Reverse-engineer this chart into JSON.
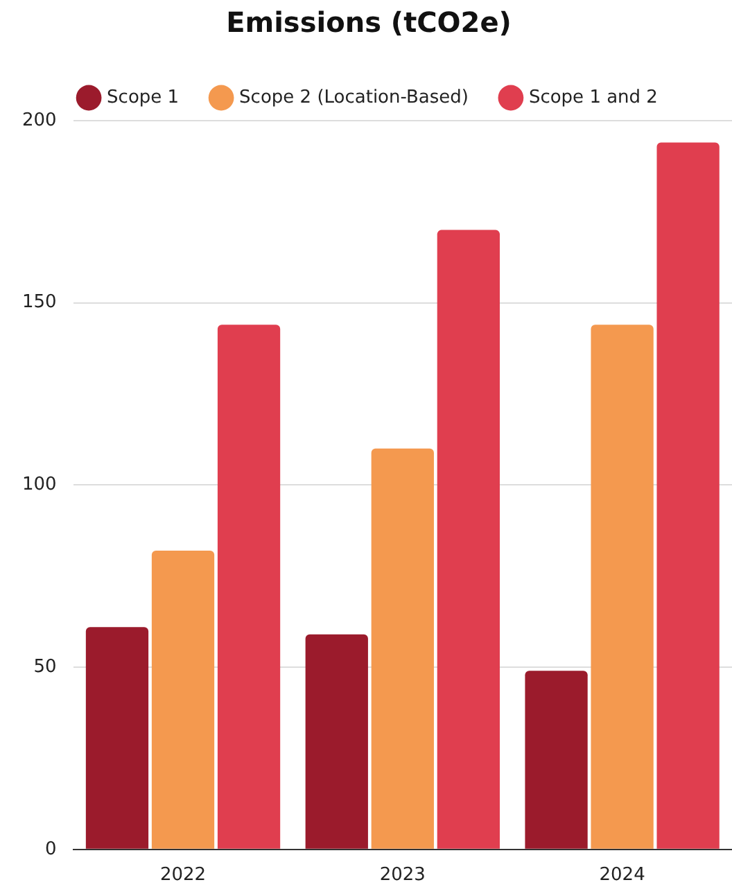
{
  "chart_data": {
    "type": "bar",
    "title": "Emissions (tCO2e)",
    "categories": [
      "2022",
      "2023",
      "2024"
    ],
    "series": [
      {
        "name": "Scope 1",
        "color": "#9b1b2c",
        "values": [
          61,
          59,
          49
        ]
      },
      {
        "name": "Scope 2 (Location-Based)",
        "color": "#f4994f",
        "values": [
          82,
          110,
          144
        ]
      },
      {
        "name": "Scope 1 and 2",
        "color": "#e03e4f",
        "values": [
          144,
          170,
          194
        ]
      }
    ],
    "ylim": [
      0,
      200
    ],
    "yticks": [
      0,
      50,
      100,
      150,
      200
    ],
    "grid": "y",
    "legend": "top"
  }
}
